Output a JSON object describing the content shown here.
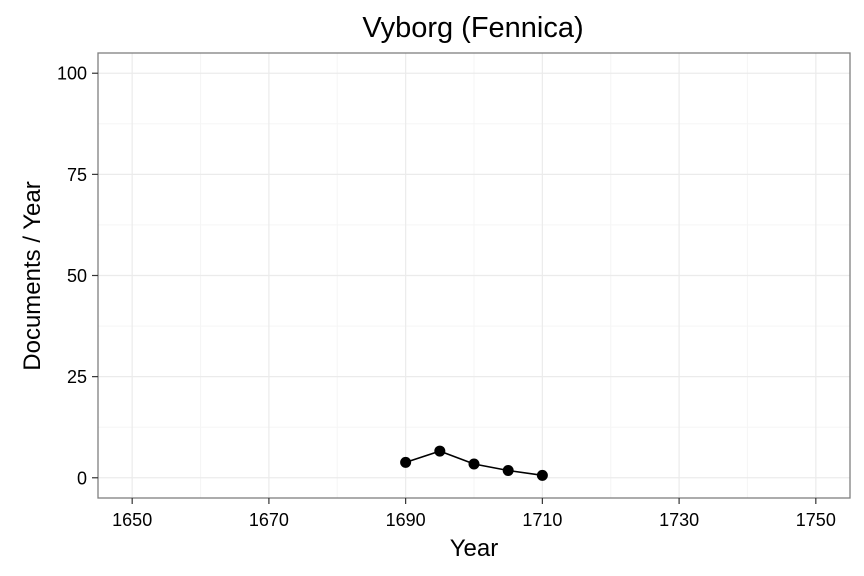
{
  "chart_data": {
    "type": "line",
    "title": "Vyborg (Fennica)",
    "xlabel": "Year",
    "ylabel": "Documents / Year",
    "xlim": [
      1645,
      1755
    ],
    "ylim": [
      -5,
      105
    ],
    "xticks": [
      1650,
      1670,
      1690,
      1710,
      1730,
      1750
    ],
    "yticks": [
      0,
      25,
      50,
      75,
      100
    ],
    "grid": true,
    "legend": "none",
    "series": [
      {
        "x": [
          1690,
          1695,
          1700,
          1705,
          1710
        ],
        "y": [
          3.8,
          6.6,
          3.4,
          1.8,
          0.6
        ]
      }
    ],
    "colors": {
      "line": "#000000",
      "point": "#000000",
      "panel_border": "#7f7f7f",
      "grid_major": "#ebebeb",
      "grid_minor": "#f5f5f5"
    }
  }
}
